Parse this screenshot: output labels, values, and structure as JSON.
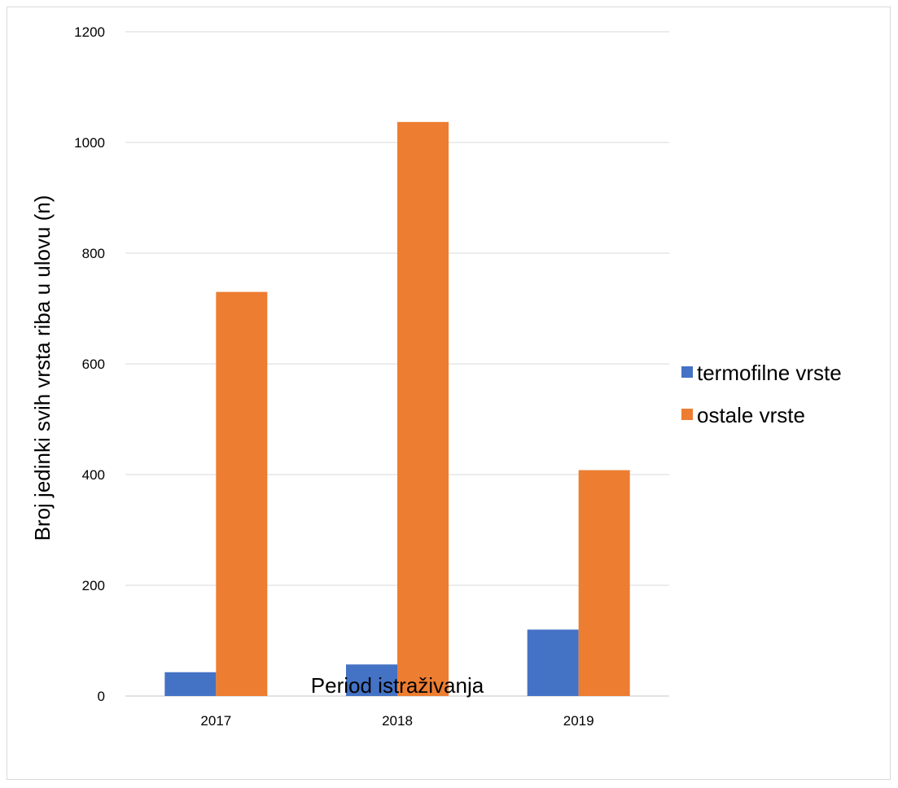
{
  "chart_data": {
    "type": "bar",
    "title": "",
    "xlabel": "Period istraživanja",
    "ylabel": "Broj jedinki svih vrsta riba u ulovu (n)",
    "categories": [
      "2017",
      "2018",
      "2019"
    ],
    "series": [
      {
        "name": "termofilne vrste",
        "values": [
          43,
          57,
          120
        ],
        "color": "#4472c4"
      },
      {
        "name": "ostale vrste",
        "values": [
          730,
          1037,
          408
        ],
        "color": "#ed7d31"
      }
    ],
    "ylim": [
      0,
      1200
    ],
    "yticks": [
      0,
      200,
      400,
      600,
      800,
      1000,
      1200
    ],
    "grid": true,
    "legend_position": "right"
  }
}
